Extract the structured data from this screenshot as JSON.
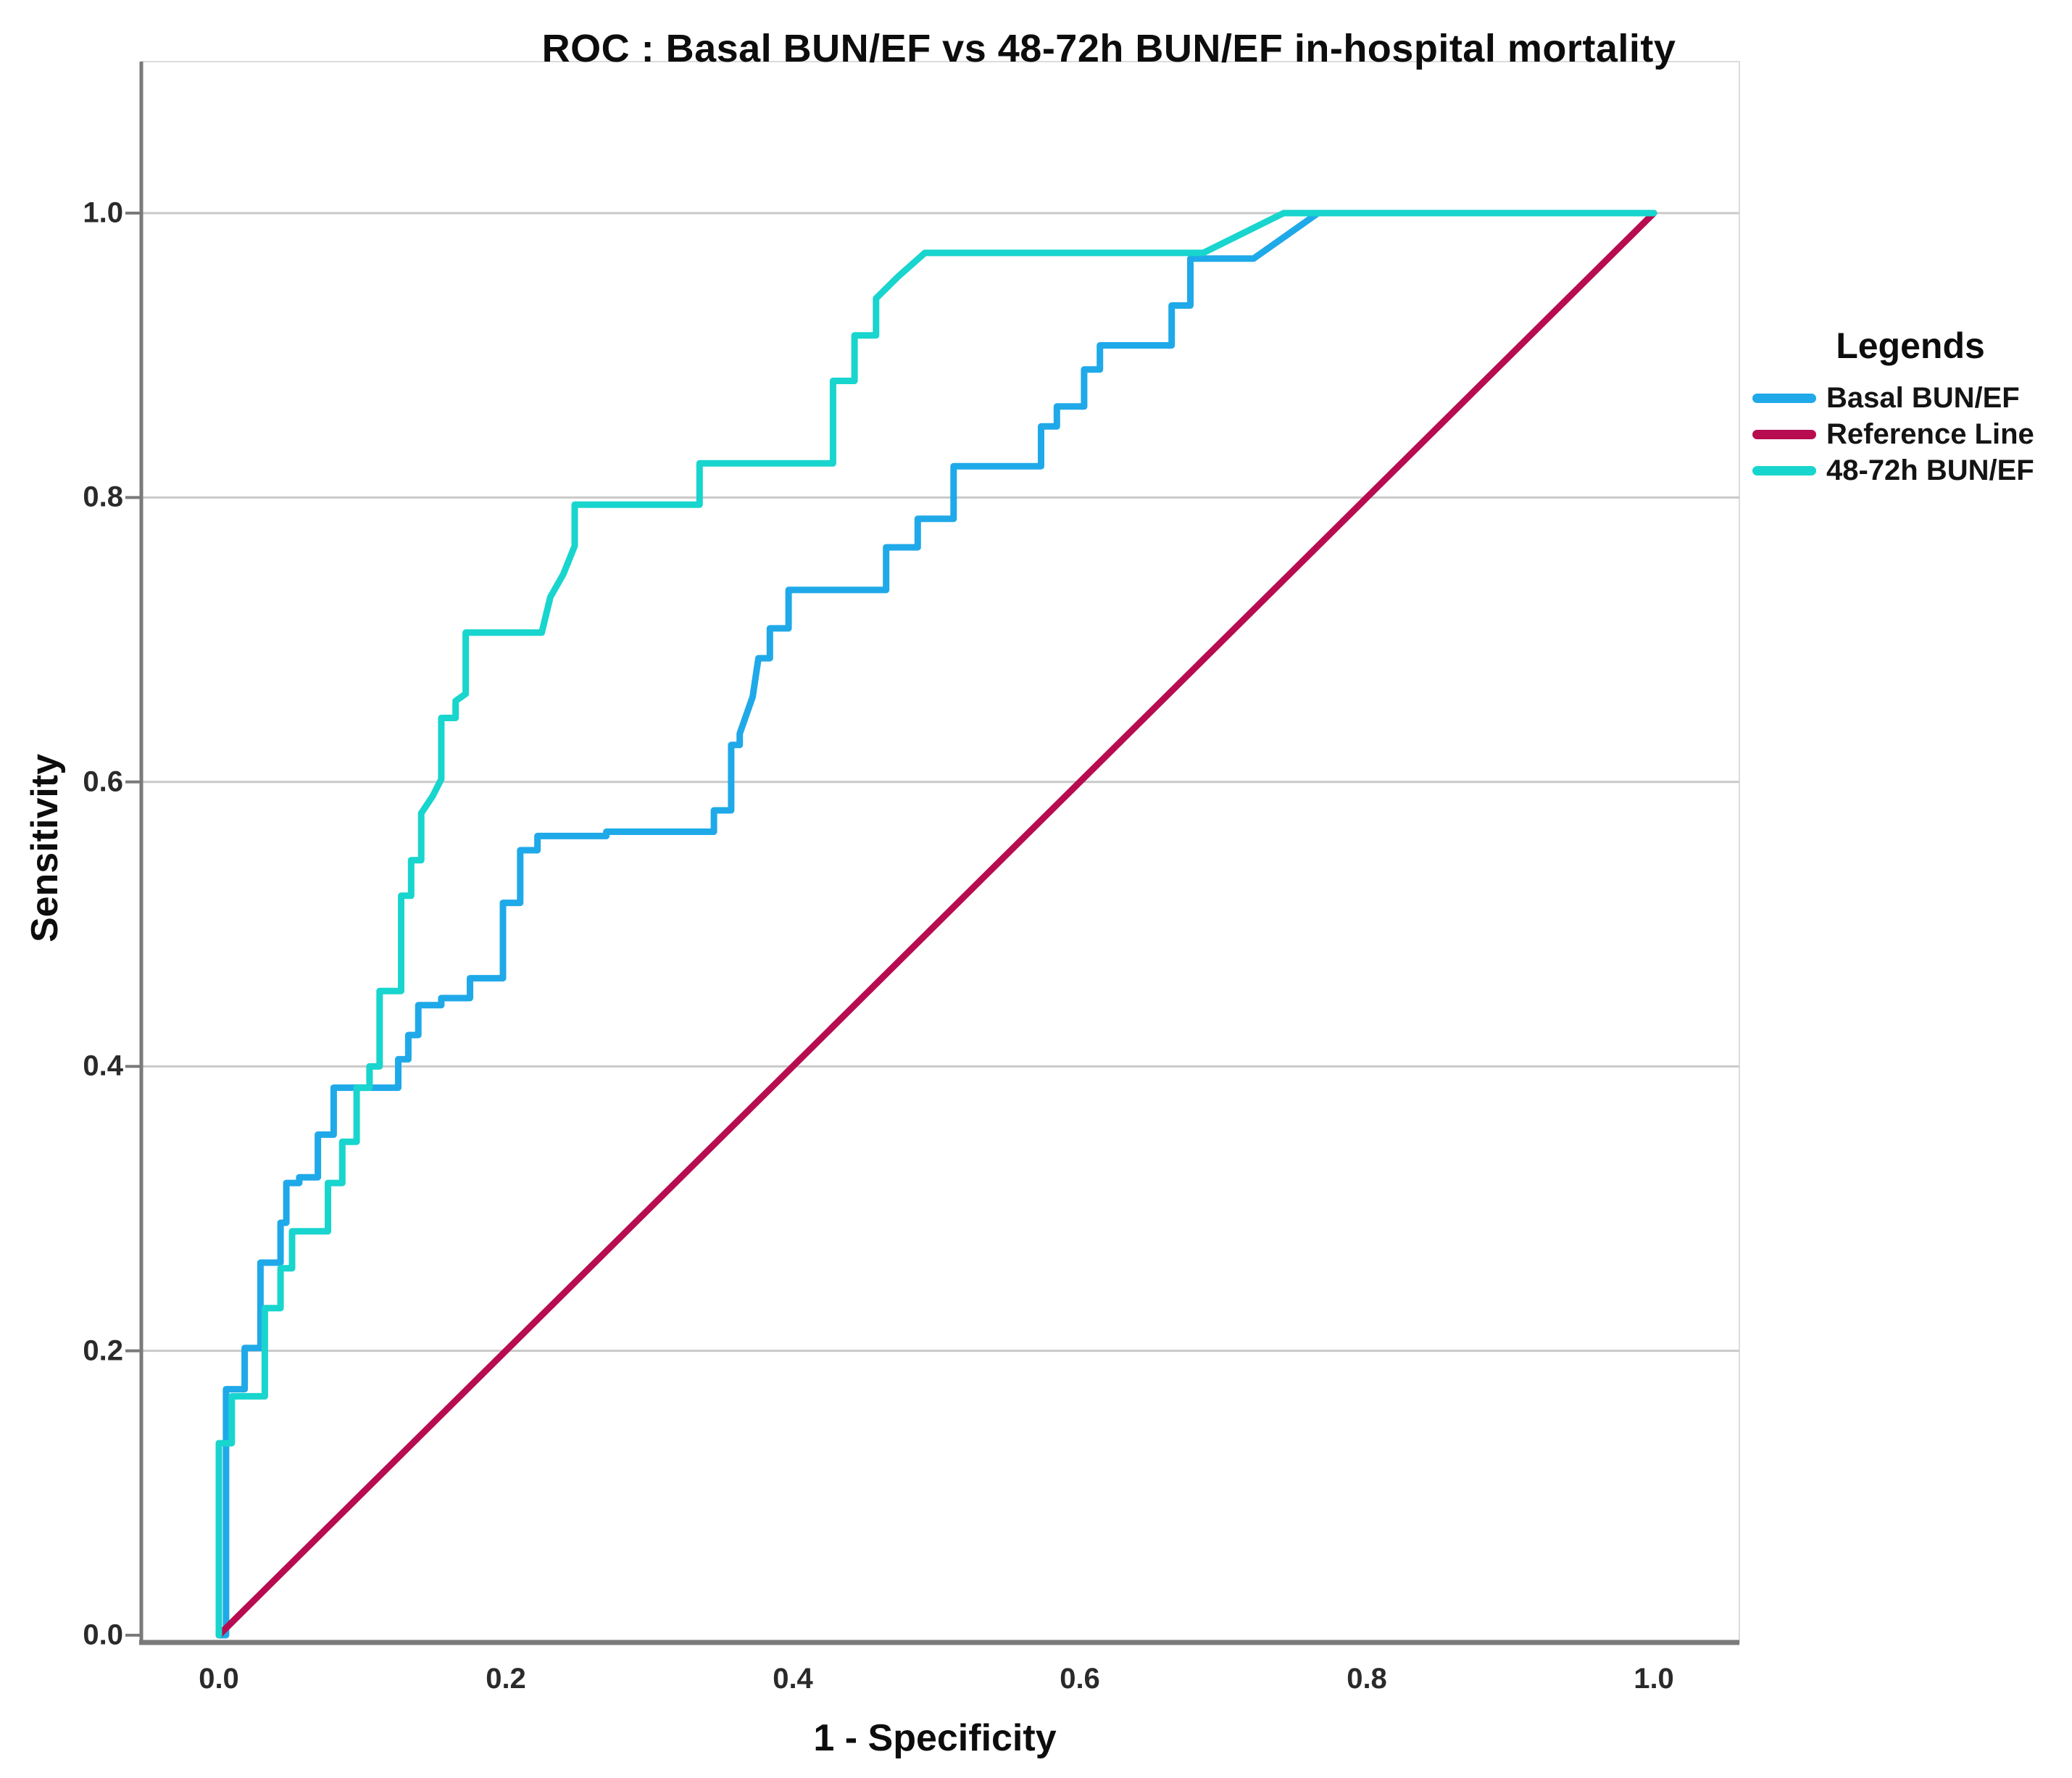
{
  "title": "ROC : Basal BUN/EF vs 48-72h BUN/EF in-hospital mortality",
  "axes": {
    "x_label": "1 - Specificity",
    "y_label": "Sensitivity",
    "x_ticks": [
      {
        "label": "0.0",
        "value": 0.0
      },
      {
        "label": "0.2",
        "value": 0.2
      },
      {
        "label": "0.4",
        "value": 0.4
      },
      {
        "label": "0.6",
        "value": 0.6
      },
      {
        "label": "0.8",
        "value": 0.8
      },
      {
        "label": "1.0",
        "value": 1.0
      }
    ],
    "y_ticks": [
      {
        "label": "0.0",
        "value": 0.0
      },
      {
        "label": "0.2",
        "value": 0.2
      },
      {
        "label": "0.4",
        "value": 0.4
      },
      {
        "label": "0.6",
        "value": 0.6
      },
      {
        "label": "0.8",
        "value": 0.8
      },
      {
        "label": "1.0",
        "value": 1.0
      }
    ]
  },
  "legend": {
    "title": "Legends",
    "items": [
      {
        "label": "Basal BUN/EF",
        "color": "#1FA9E9"
      },
      {
        "label": "Reference Line",
        "color": "#B70C50"
      },
      {
        "label": "48-72h BUN/EF",
        "color": "#18D5CE"
      }
    ]
  },
  "colors": {
    "grid": "#c9c9c9",
    "frame_light": "#dcdcdc",
    "axis_line": "#7a7a7a",
    "background": "#ffffff"
  },
  "chart_data": {
    "type": "line",
    "title": "ROC : Basal BUN/EF vs 48-72h BUN/EF in-hospital mortality",
    "xlabel": "1 - Specificity",
    "ylabel": "Sensitivity",
    "xlim": [
      0,
      1
    ],
    "ylim": [
      0,
      1
    ],
    "grid": "horizontal-only",
    "legend_position": "right",
    "series": [
      {
        "name": "Basal BUN/EF",
        "color": "#1FA9E9",
        "style": "step-roc",
        "points": [
          [
            0,
            0
          ],
          [
            0.005,
            0
          ],
          [
            0.005,
            0.173
          ],
          [
            0.018,
            0.173
          ],
          [
            0.018,
            0.202
          ],
          [
            0.029,
            0.202
          ],
          [
            0.029,
            0.262
          ],
          [
            0.043,
            0.262
          ],
          [
            0.043,
            0.29
          ],
          [
            0.047,
            0.29
          ],
          [
            0.047,
            0.318
          ],
          [
            0.056,
            0.318
          ],
          [
            0.056,
            0.322
          ],
          [
            0.069,
            0.322
          ],
          [
            0.069,
            0.352
          ],
          [
            0.08,
            0.352
          ],
          [
            0.08,
            0.385
          ],
          [
            0.125,
            0.385
          ],
          [
            0.125,
            0.405
          ],
          [
            0.132,
            0.405
          ],
          [
            0.132,
            0.422
          ],
          [
            0.139,
            0.422
          ],
          [
            0.139,
            0.443
          ],
          [
            0.155,
            0.443
          ],
          [
            0.155,
            0.448
          ],
          [
            0.175,
            0.448
          ],
          [
            0.175,
            0.462
          ],
          [
            0.198,
            0.462
          ],
          [
            0.198,
            0.48
          ],
          [
            0.198,
            0.515
          ],
          [
            0.21,
            0.515
          ],
          [
            0.21,
            0.552
          ],
          [
            0.222,
            0.552
          ],
          [
            0.222,
            0.562
          ],
          [
            0.27,
            0.562
          ],
          [
            0.27,
            0.565
          ],
          [
            0.345,
            0.565
          ],
          [
            0.345,
            0.58
          ],
          [
            0.357,
            0.58
          ],
          [
            0.357,
            0.626
          ],
          [
            0.363,
            0.626
          ],
          [
            0.363,
            0.634
          ],
          [
            0.372,
            0.66
          ],
          [
            0.376,
            0.687
          ],
          [
            0.384,
            0.687
          ],
          [
            0.384,
            0.708
          ],
          [
            0.397,
            0.708
          ],
          [
            0.397,
            0.735
          ],
          [
            0.465,
            0.735
          ],
          [
            0.465,
            0.765
          ],
          [
            0.487,
            0.765
          ],
          [
            0.487,
            0.785
          ],
          [
            0.512,
            0.785
          ],
          [
            0.512,
            0.822
          ],
          [
            0.573,
            0.822
          ],
          [
            0.573,
            0.85
          ],
          [
            0.584,
            0.85
          ],
          [
            0.584,
            0.864
          ],
          [
            0.603,
            0.864
          ],
          [
            0.603,
            0.89
          ],
          [
            0.614,
            0.89
          ],
          [
            0.614,
            0.907
          ],
          [
            0.664,
            0.907
          ],
          [
            0.664,
            0.935
          ],
          [
            0.677,
            0.935
          ],
          [
            0.677,
            0.968
          ],
          [
            0.699,
            0.968
          ],
          [
            0.721,
            0.968
          ],
          [
            0.766,
            1.0
          ],
          [
            1,
            1
          ]
        ]
      },
      {
        "name": "Reference Line",
        "color": "#B70C50",
        "style": "straight",
        "points": [
          [
            0,
            0
          ],
          [
            1,
            1
          ]
        ]
      },
      {
        "name": "48-72h BUN/EF",
        "color": "#18D5CE",
        "style": "step-roc",
        "points": [
          [
            0,
            0
          ],
          [
            0,
            0.135
          ],
          [
            0.009,
            0.135
          ],
          [
            0.009,
            0.168
          ],
          [
            0.032,
            0.168
          ],
          [
            0.032,
            0.23
          ],
          [
            0.043,
            0.23
          ],
          [
            0.043,
            0.258
          ],
          [
            0.051,
            0.258
          ],
          [
            0.051,
            0.284
          ],
          [
            0.076,
            0.284
          ],
          [
            0.076,
            0.318
          ],
          [
            0.086,
            0.318
          ],
          [
            0.086,
            0.347
          ],
          [
            0.096,
            0.347
          ],
          [
            0.096,
            0.385
          ],
          [
            0.105,
            0.385
          ],
          [
            0.105,
            0.4
          ],
          [
            0.112,
            0.4
          ],
          [
            0.112,
            0.453
          ],
          [
            0.127,
            0.453
          ],
          [
            0.127,
            0.52
          ],
          [
            0.134,
            0.52
          ],
          [
            0.134,
            0.545
          ],
          [
            0.141,
            0.545
          ],
          [
            0.141,
            0.578
          ],
          [
            0.149,
            0.59
          ],
          [
            0.155,
            0.602
          ],
          [
            0.155,
            0.645
          ],
          [
            0.165,
            0.645
          ],
          [
            0.165,
            0.657
          ],
          [
            0.172,
            0.662
          ],
          [
            0.172,
            0.705
          ],
          [
            0.225,
            0.705
          ],
          [
            0.231,
            0.73
          ],
          [
            0.24,
            0.746
          ],
          [
            0.248,
            0.766
          ],
          [
            0.248,
            0.795
          ],
          [
            0.335,
            0.795
          ],
          [
            0.335,
            0.824
          ],
          [
            0.428,
            0.824
          ],
          [
            0.428,
            0.882
          ],
          [
            0.443,
            0.882
          ],
          [
            0.443,
            0.914
          ],
          [
            0.458,
            0.914
          ],
          [
            0.458,
            0.94
          ],
          [
            0.473,
            0.955
          ],
          [
            0.492,
            0.972
          ],
          [
            0.686,
            0.972
          ],
          [
            0.742,
            1.0
          ],
          [
            1,
            1
          ]
        ]
      }
    ]
  }
}
